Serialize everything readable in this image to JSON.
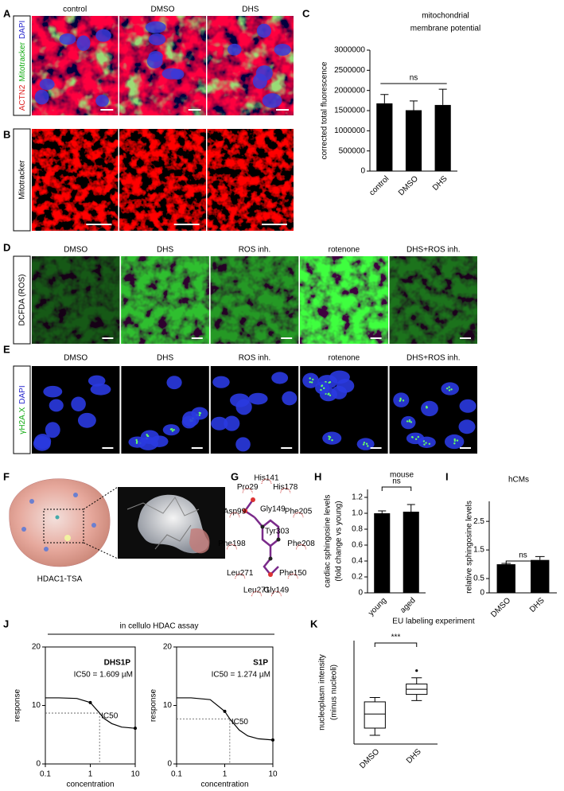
{
  "figure": {
    "panel_labels": [
      "A",
      "B",
      "C",
      "D",
      "E",
      "F",
      "G",
      "H",
      "I",
      "J",
      "K"
    ]
  },
  "panel_A": {
    "columns": [
      "control",
      "DMSO",
      "DHS"
    ],
    "stain_label": [
      "ACTN2",
      "Mitotracker",
      "DAPI"
    ]
  },
  "panel_B": {
    "stain_label": "Mitotracker"
  },
  "panel_D": {
    "columns": [
      "DMSO",
      "DHS",
      "ROS inh.",
      "rotenone",
      "DHS+ROS inh."
    ],
    "stain_label": "DCFDA (ROS)"
  },
  "panel_E": {
    "columns": [
      "DMSO",
      "DHS",
      "ROS inh.",
      "rotenone",
      "DHS+ROS inh."
    ],
    "stain_label": [
      "γH2A.X",
      "DAPI"
    ]
  },
  "panel_F": {
    "caption": "HDAC1-TSA"
  },
  "panel_G": {
    "residues": [
      "His141",
      "His178",
      "Phe205",
      "Phe208",
      "Phe150",
      "Gly149",
      "Leu271",
      "Leu271",
      "Phe198",
      "Asp99",
      "Pro29"
    ],
    "hbonds": [
      "Gly149",
      "Tyr303"
    ]
  },
  "panel_J": {
    "title": "in cellulo HDAC assay"
  },
  "chart_data": [
    {
      "type": "bar",
      "title": [
        "mitochondrial",
        "membrane potential"
      ],
      "y_label": [
        "corrected total fluorescence"
      ],
      "categories": [
        "control",
        "DMSO",
        "DHS"
      ],
      "values": [
        1680000,
        1510000,
        1640000
      ],
      "errors": [
        220000,
        230000,
        390000
      ],
      "color": "#000000",
      "ylim": [
        0,
        3000000
      ],
      "yticks": [
        0,
        500000,
        1000000,
        1500000,
        2000000,
        2500000,
        3000000
      ],
      "annotation": "ns"
    },
    {
      "type": "bar",
      "title": "mouse",
      "y_label": [
        "cardiac sphingosine levels",
        "(fold change vs young)"
      ],
      "categories": [
        "young",
        "aged"
      ],
      "values": [
        1.0,
        1.02
      ],
      "errors": [
        0.03,
        0.09
      ],
      "color": "#000000",
      "ylim": [
        0,
        1.3
      ],
      "yticks": [
        0,
        0.2,
        0.4,
        0.6,
        0.8,
        {
          "value": 1,
          "label": "1.0"
        },
        1.2
      ],
      "annotation": "ns"
    },
    {
      "type": "bar",
      "title": "hCMs",
      "y_label": [
        "relative sphingosine levels"
      ],
      "categories": [
        "DMSO",
        "DHS"
      ],
      "values": [
        1.0,
        1.15
      ],
      "errors": [
        0.03,
        0.12
      ],
      "color": "#000000",
      "ylim": [
        0,
        3.2
      ],
      "yticks": [
        0,
        0.5,
        1.5,
        2.5
      ],
      "annotation": "ns"
    },
    {
      "type": "line",
      "name_label": "DHS1P",
      "ic50_text": "IC50 = 1.609 µM",
      "ic50_tag": "IC50",
      "ic50": 1.609,
      "ic50_response": 8.7,
      "x_label": "concentration",
      "y_label": [
        "response"
      ],
      "xscale": "log",
      "xlim": [
        0.1,
        10
      ],
      "xticks": [
        0.1,
        1,
        10
      ],
      "ylim": [
        0,
        20
      ],
      "yticks": [
        0,
        10,
        20
      ],
      "x": [
        0.1,
        0.2,
        0.5,
        1,
        1.609,
        2,
        3,
        5,
        10
      ],
      "values": [
        11.3,
        11.3,
        11.2,
        10.5,
        8.7,
        7.8,
        6.9,
        6.3,
        6.1
      ],
      "markers_x": [
        1,
        10
      ],
      "markers_y": [
        10.5,
        6.1
      ],
      "color": "#000000"
    },
    {
      "type": "line",
      "name_label": "S1P",
      "ic50_text": "IC50 = 1.274 µM",
      "ic50_tag": "IC50",
      "ic50": 1.274,
      "ic50_response": 7.7,
      "x_label": "concentration",
      "y_label": [
        "response"
      ],
      "xscale": "log",
      "xlim": [
        0.1,
        10
      ],
      "xticks": [
        0.1,
        1,
        10
      ],
      "ylim": [
        0,
        20
      ],
      "yticks": [
        0,
        10,
        20
      ],
      "x": [
        0.1,
        0.2,
        0.5,
        1,
        1.274,
        2,
        3,
        5,
        10
      ],
      "values": [
        11.3,
        11.3,
        11.0,
        9.0,
        7.7,
        5.8,
        4.8,
        4.3,
        4.1
      ],
      "markers_x": [
        1,
        10
      ],
      "markers_y": [
        9.0,
        4.1
      ],
      "color": "#000000"
    },
    {
      "type": "box",
      "title": "EU labeling experiment",
      "y_label": [
        "nucleoplasm intensity",
        "(minus nucleoli)"
      ],
      "categories": [
        "DMSO",
        "DHS"
      ],
      "ylim": [
        0,
        100
      ],
      "annotation": "***",
      "boxes": [
        {
          "min": 8.5,
          "q1": 15.4,
          "median": 29,
          "q3": 40.8,
          "max": 45,
          "outliers": []
        },
        {
          "min": 42,
          "q1": 48,
          "median": 53,
          "q3": 58,
          "max": 64,
          "outliers": [
            71
          ]
        }
      ]
    }
  ]
}
